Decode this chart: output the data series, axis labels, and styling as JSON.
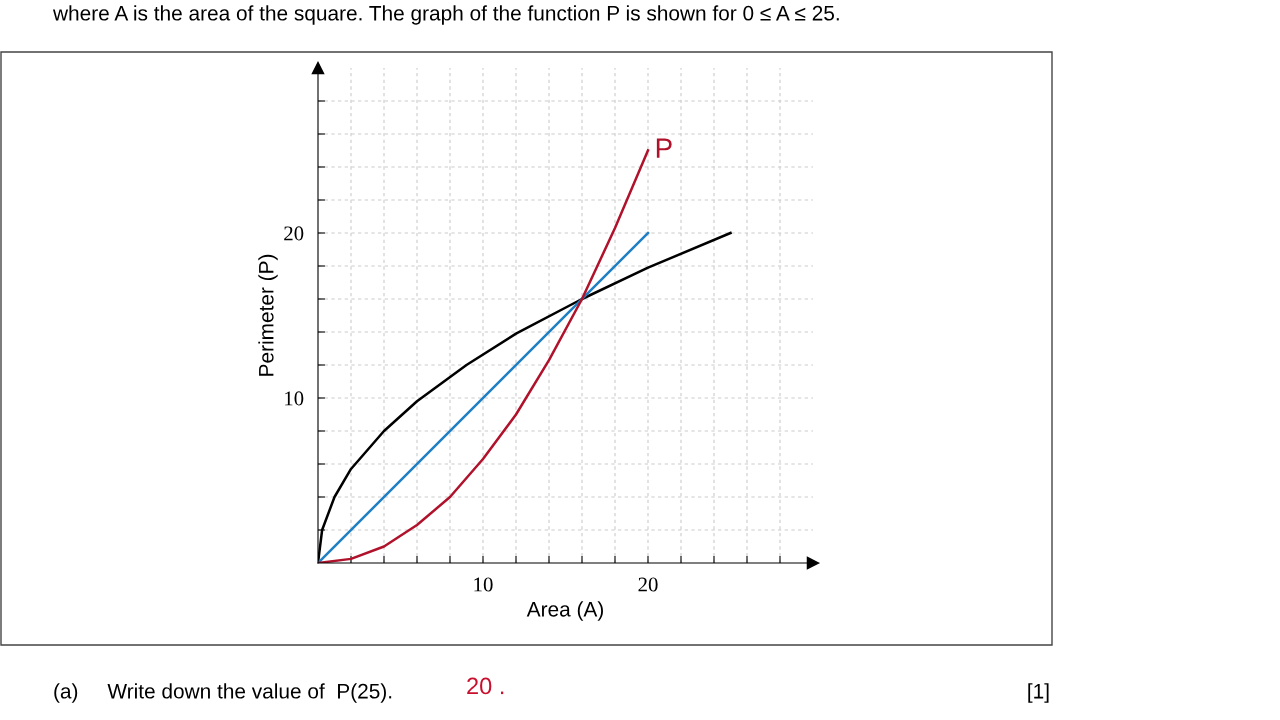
{
  "chart_data": {
    "type": "line",
    "xlabel": "Area (A)",
    "ylabel": "Perimeter (P)",
    "xlim": [
      0,
      30
    ],
    "ylim": [
      0,
      30
    ],
    "xticks": [
      {
        "value": 2,
        "label": null
      },
      {
        "value": 4,
        "label": null
      },
      {
        "value": 6,
        "label": null
      },
      {
        "value": 8,
        "label": null
      },
      10,
      {
        "value": 12,
        "label": null
      },
      {
        "value": 14,
        "label": null
      },
      {
        "value": 16,
        "label": null
      },
      {
        "value": 18,
        "label": null
      },
      20,
      {
        "value": 22,
        "label": null
      },
      {
        "value": 24,
        "label": null
      },
      {
        "value": 26,
        "label": null
      },
      {
        "value": 28,
        "label": null
      }
    ],
    "yticks": [
      {
        "value": 2,
        "label": null
      },
      {
        "value": 4,
        "label": null
      },
      {
        "value": 6,
        "label": null
      },
      {
        "value": 8,
        "label": null
      },
      10,
      {
        "value": 12,
        "label": null
      },
      {
        "value": 14,
        "label": null
      },
      {
        "value": 16,
        "label": null
      },
      {
        "value": 18,
        "label": null
      },
      20,
      {
        "value": 22,
        "label": null
      },
      {
        "value": 24,
        "label": null
      },
      {
        "value": 26,
        "label": null
      },
      {
        "value": 28,
        "label": null
      }
    ],
    "grid": true,
    "legend": false,
    "marker": "none",
    "line_style": "solid",
    "series": [
      {
        "color": "#000000",
        "x": [
          0,
          0.25,
          1,
          2,
          4,
          6,
          9,
          12,
          16,
          20,
          25
        ],
        "values": [
          0,
          2,
          4,
          5.7,
          8,
          9.8,
          12,
          13.9,
          16,
          17.9,
          20
        ]
      },
      {
        "color": "#1f7fc4",
        "x": [
          0,
          20
        ],
        "values": [
          0,
          20
        ]
      },
      {
        "name": "P",
        "color": "#b0122b",
        "x": [
          0,
          2,
          4,
          6,
          8,
          10,
          12,
          14,
          16,
          18,
          20
        ],
        "values": [
          0,
          0.25,
          1,
          2.3,
          4,
          6.3,
          9,
          12.3,
          16,
          20.3,
          25
        ]
      }
    ],
    "annotations": [
      "where A is the area of the square. The graph of the function P is shown for 0 ≤ A ≤ 25.",
      "(a)     Write down the value of  P(25).",
      "20 .",
      "[1]"
    ]
  }
}
